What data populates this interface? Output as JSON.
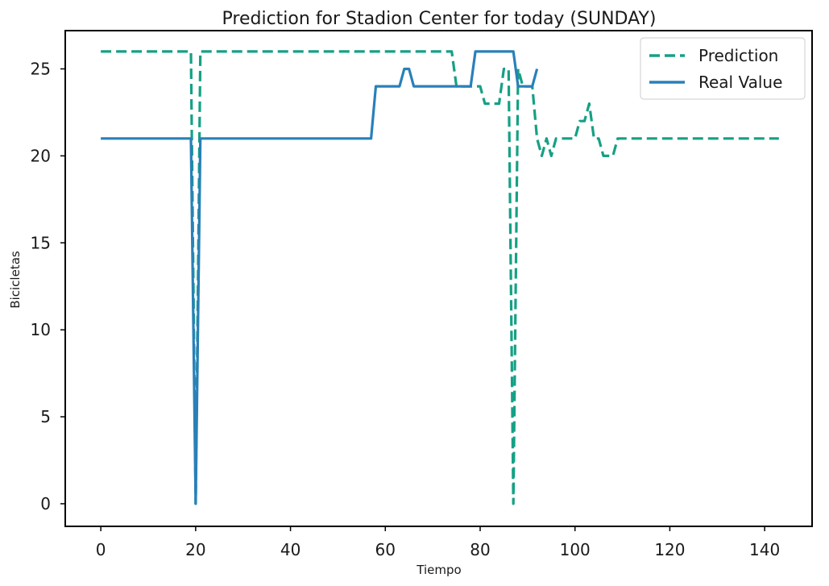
{
  "chart_data": {
    "type": "line",
    "title": "Prediction for Stadion Center for today (SUNDAY)",
    "xlabel": "Tiempo",
    "ylabel": "Bicicletas",
    "xlim": [
      -7.5,
      150
    ],
    "ylim": [
      -1.3,
      27.2
    ],
    "xticks": [
      0,
      20,
      40,
      60,
      80,
      100,
      120,
      140
    ],
    "yticks": [
      0,
      5,
      10,
      15,
      20,
      25
    ],
    "grid": false,
    "legend_position": "top-right",
    "series": [
      {
        "name": "Prediction",
        "color": "#16a085",
        "style": "dashed",
        "points": [
          [
            0,
            26
          ],
          [
            19,
            26
          ],
          [
            20,
            0
          ],
          [
            21,
            26
          ],
          [
            74,
            26
          ],
          [
            75,
            24
          ],
          [
            78,
            24
          ],
          [
            79,
            24
          ],
          [
            80,
            24
          ],
          [
            81,
            23
          ],
          [
            84,
            23
          ],
          [
            85,
            25
          ],
          [
            86,
            25
          ],
          [
            87,
            0
          ],
          [
            88,
            25
          ],
          [
            89,
            24
          ],
          [
            90,
            24
          ],
          [
            91,
            24
          ],
          [
            92,
            21
          ],
          [
            93,
            20
          ],
          [
            94,
            21
          ],
          [
            95,
            20
          ],
          [
            96,
            21
          ],
          [
            100,
            21
          ],
          [
            101,
            22
          ],
          [
            102,
            22
          ],
          [
            103,
            23
          ],
          [
            104,
            21
          ],
          [
            105,
            21
          ],
          [
            106,
            20
          ],
          [
            108,
            20
          ],
          [
            109,
            21
          ],
          [
            143,
            21
          ]
        ]
      },
      {
        "name": "Real Value",
        "color": "#2980b9",
        "style": "solid",
        "points": [
          [
            0,
            21
          ],
          [
            19,
            21
          ],
          [
            20,
            0
          ],
          [
            21,
            21
          ],
          [
            57,
            21
          ],
          [
            58,
            24
          ],
          [
            63,
            24
          ],
          [
            64,
            25
          ],
          [
            65,
            25
          ],
          [
            66,
            24
          ],
          [
            78,
            24
          ],
          [
            79,
            26
          ],
          [
            87,
            26
          ],
          [
            88,
            24
          ],
          [
            91,
            24
          ],
          [
            92,
            25
          ]
        ]
      }
    ]
  }
}
